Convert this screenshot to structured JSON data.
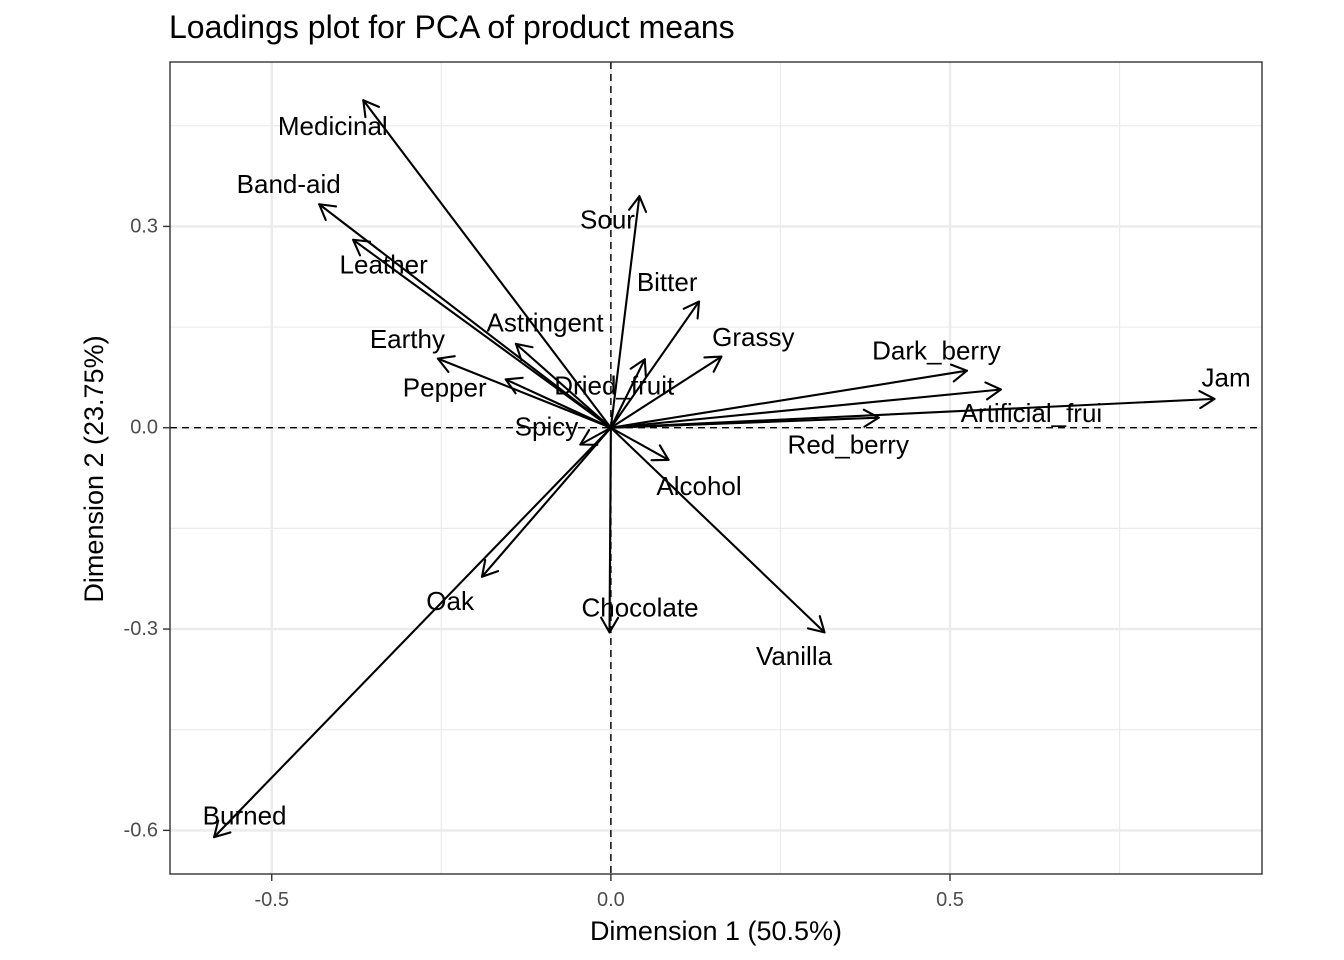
{
  "chart_data": {
    "type": "scatter",
    "subtype": "loadings-arrows",
    "title": "Loadings plot for PCA of product means",
    "xlabel": "Dimension 1 (50.5%)",
    "ylabel": "Dimension 2 (23.75%)",
    "xlim": [
      -0.65,
      0.96
    ],
    "ylim": [
      -0.665,
      0.545
    ],
    "xticks": [
      -0.5,
      0.0,
      0.5
    ],
    "xtick_labels": [
      "-0.5",
      "0.0",
      "0.5"
    ],
    "yticks": [
      -0.6,
      -0.3,
      0.0,
      0.3
    ],
    "ytick_labels": [
      "-0.6",
      "-0.3",
      "0.0",
      "0.3"
    ],
    "grid": true,
    "reference_lines": {
      "x": 0,
      "y": 0,
      "style": "dashed"
    },
    "colors": {
      "arrow": "#000000",
      "grid": "#ebebeb",
      "panel_border": "#333333"
    },
    "variables": [
      {
        "name": "Medicinal",
        "x": -0.365,
        "y": 0.488,
        "label_x": -0.41,
        "label_y": 0.45
      },
      {
        "name": "Band-aid",
        "x": -0.43,
        "y": 0.333,
        "label_x": -0.475,
        "label_y": 0.363
      },
      {
        "name": "Leather",
        "x": -0.38,
        "y": 0.28,
        "label_x": -0.335,
        "label_y": 0.243
      },
      {
        "name": "Sour",
        "x": 0.042,
        "y": 0.345,
        "label_x": -0.005,
        "label_y": 0.31
      },
      {
        "name": "Bitter",
        "x": 0.13,
        "y": 0.188,
        "label_x": 0.083,
        "label_y": 0.217
      },
      {
        "name": "Astringent",
        "x": -0.14,
        "y": 0.125,
        "label_x": -0.097,
        "label_y": 0.157
      },
      {
        "name": "Earthy",
        "x": -0.255,
        "y": 0.103,
        "label_x": -0.3,
        "label_y": 0.132
      },
      {
        "name": "Grassy",
        "x": 0.163,
        "y": 0.106,
        "label_x": 0.21,
        "label_y": 0.135
      },
      {
        "name": "Dark_berry",
        "x": 0.525,
        "y": 0.085,
        "label_x": 0.48,
        "label_y": 0.115
      },
      {
        "name": "Jam",
        "x": 0.89,
        "y": 0.043,
        "label_x": 0.907,
        "label_y": 0.075
      },
      {
        "name": "Dried_fruit",
        "x": 0.05,
        "y": 0.102,
        "label_x": 0.005,
        "label_y": 0.063
      },
      {
        "name": "Pepper",
        "x": -0.155,
        "y": 0.072,
        "label_x": -0.245,
        "label_y": 0.06
      },
      {
        "name": "Artificial_frui",
        "x": 0.575,
        "y": 0.057,
        "label_x": 0.62,
        "label_y": 0.022
      },
      {
        "name": "Red_berry",
        "x": 0.395,
        "y": 0.015,
        "label_x": 0.35,
        "label_y": -0.025
      },
      {
        "name": "Spicy",
        "x": -0.045,
        "y": -0.025,
        "label_x": -0.095,
        "label_y": 0.002
      },
      {
        "name": "Alcohol",
        "x": 0.085,
        "y": -0.048,
        "label_x": 0.13,
        "label_y": -0.087
      },
      {
        "name": "Oak",
        "x": -0.19,
        "y": -0.222,
        "label_x": -0.237,
        "label_y": -0.258
      },
      {
        "name": "Chocolate",
        "x": -0.002,
        "y": -0.305,
        "label_x": 0.043,
        "label_y": -0.268
      },
      {
        "name": "Vanilla",
        "x": 0.315,
        "y": -0.305,
        "label_x": 0.27,
        "label_y": -0.34
      },
      {
        "name": "Burned",
        "x": -0.585,
        "y": -0.61,
        "label_x": -0.54,
        "label_y": -0.578
      }
    ]
  }
}
